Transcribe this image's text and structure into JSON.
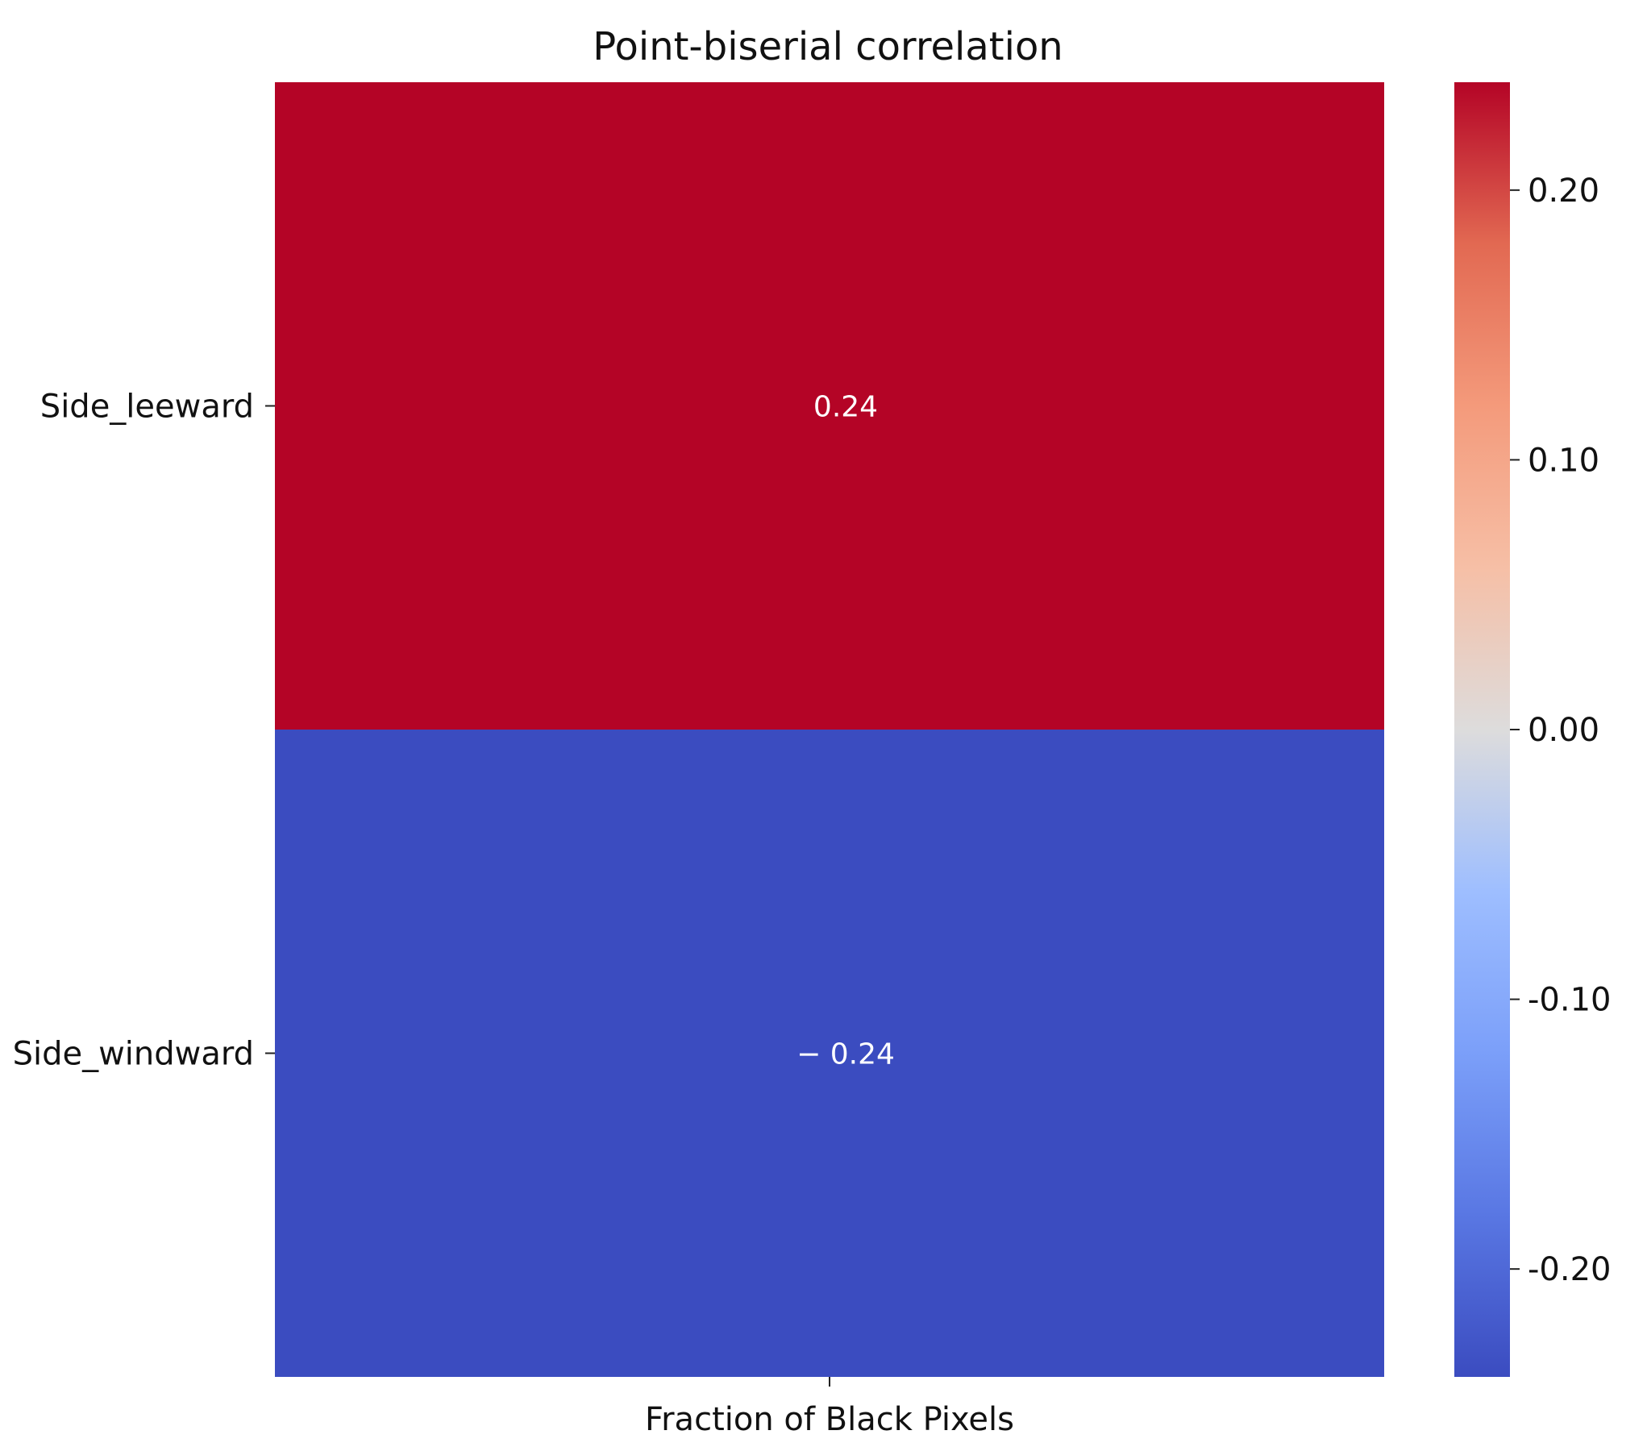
{
  "chart_data": {
    "type": "heatmap",
    "title": "Point-biserial correlation",
    "x_categories": [
      "Fraction of Black Pixels"
    ],
    "y_categories": [
      "Side_leeward",
      "Side_windward"
    ],
    "values": [
      [
        0.24
      ],
      [
        -0.24
      ]
    ],
    "annotations": [
      [
        "0.24"
      ],
      [
        "− 0.24"
      ]
    ],
    "colormap": "coolwarm",
    "colorbar": {
      "vmin": -0.24,
      "vmax": 0.24,
      "ticks": [
        0.2,
        0.1,
        0.0,
        -0.1,
        -0.2
      ],
      "tick_labels": [
        "0.20",
        "0.10",
        "0.00",
        "-0.10",
        "-0.20"
      ]
    },
    "colors": {
      "positive_cell": "#b40426",
      "negative_cell": "#3b4cc0",
      "annotation_text": "#ffffff"
    }
  }
}
